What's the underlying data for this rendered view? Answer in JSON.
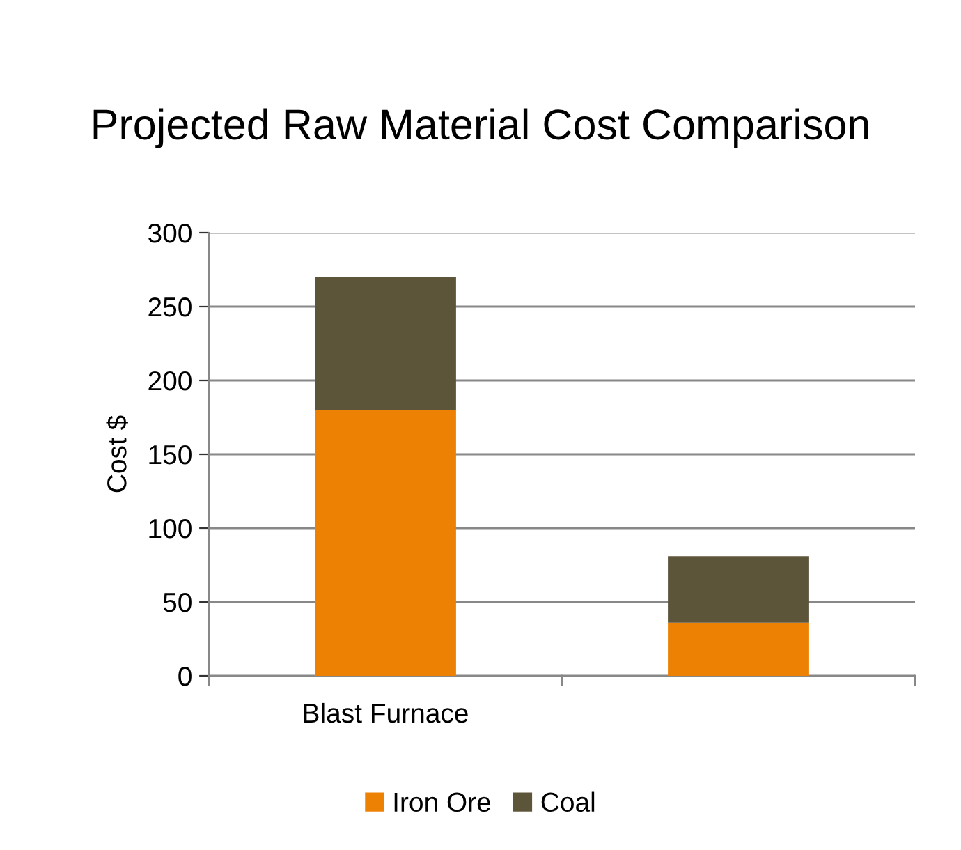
{
  "chart_data": {
    "type": "bar",
    "title": "Projected Raw Material Cost Comparison",
    "ylabel": "Cost $",
    "categories": [
      "Blast Furnace",
      null
    ],
    "stacked": true,
    "series": [
      {
        "name": "Iron Ore",
        "color": "#ed8104",
        "values": [
          180,
          36
        ]
      },
      {
        "name": "Coal",
        "color": "#5c553a",
        "values": [
          90,
          45
        ]
      }
    ],
    "ylim": [
      0,
      300
    ],
    "yticks": [
      0,
      50,
      100,
      150,
      200,
      250,
      300
    ],
    "grid": "y",
    "legend": "bottom"
  }
}
